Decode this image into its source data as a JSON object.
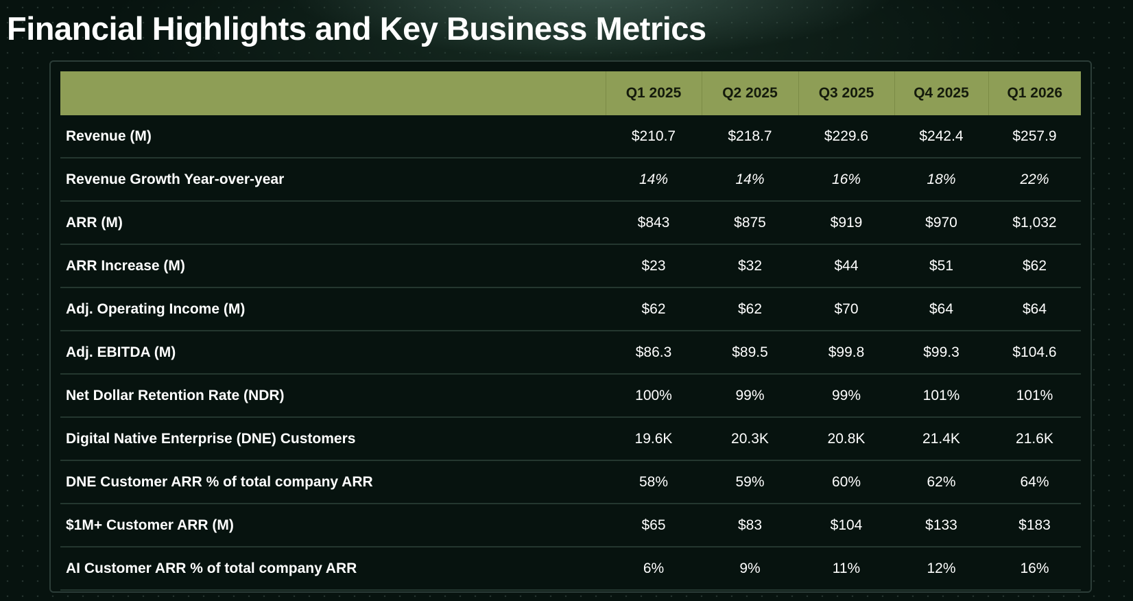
{
  "title": "Financial Highlights and Key Business Metrics",
  "table": {
    "columns": [
      "Q1 2025",
      "Q2 2025",
      "Q3 2025",
      "Q4 2025",
      "Q1 2026"
    ],
    "rows": [
      {
        "label": "Revenue (M)",
        "values": [
          "$210.7",
          "$218.7",
          "$229.6",
          "$242.4",
          "$257.9"
        ]
      },
      {
        "label": "Revenue Growth Year-over-year",
        "values": [
          "14%",
          "14%",
          "16%",
          "18%",
          "22%"
        ]
      },
      {
        "label": "ARR (M)",
        "values": [
          "$843",
          "$875",
          "$919",
          "$970",
          "$1,032"
        ]
      },
      {
        "label": "ARR Increase (M)",
        "values": [
          "$23",
          "$32",
          "$44",
          "$51",
          "$62"
        ]
      },
      {
        "label": "Adj. Operating Income (M)",
        "values": [
          "$62",
          "$62",
          "$70",
          "$64",
          "$64"
        ]
      },
      {
        "label": "Adj. EBITDA (M)",
        "values": [
          "$86.3",
          "$89.5",
          "$99.8",
          "$99.3",
          "$104.6"
        ]
      },
      {
        "label": "Net Dollar Retention Rate (NDR)",
        "values": [
          "100%",
          "99%",
          "99%",
          "101%",
          "101%"
        ]
      },
      {
        "label": "Digital Native Enterprise (DNE) Customers",
        "values": [
          "19.6K",
          "20.3K",
          "20.8K",
          "21.4K",
          "21.6K"
        ]
      },
      {
        "label": "DNE Customer ARR % of total company ARR",
        "values": [
          "58%",
          "59%",
          "60%",
          "62%",
          "64%"
        ]
      },
      {
        "label": "$1M+ Customer ARR (M)",
        "values": [
          "$65",
          "$83",
          "$104",
          "$133",
          "$183"
        ]
      },
      {
        "label": "AI Customer ARR % of total company ARR",
        "values": [
          "6%",
          "9%",
          "11%",
          "12%",
          "16%"
        ]
      }
    ]
  },
  "colors": {
    "background": "#07130f",
    "header_fill": "#8e9e56",
    "header_text": "#141a0c",
    "row_divider": "#24372f",
    "text": "#ffffff"
  }
}
